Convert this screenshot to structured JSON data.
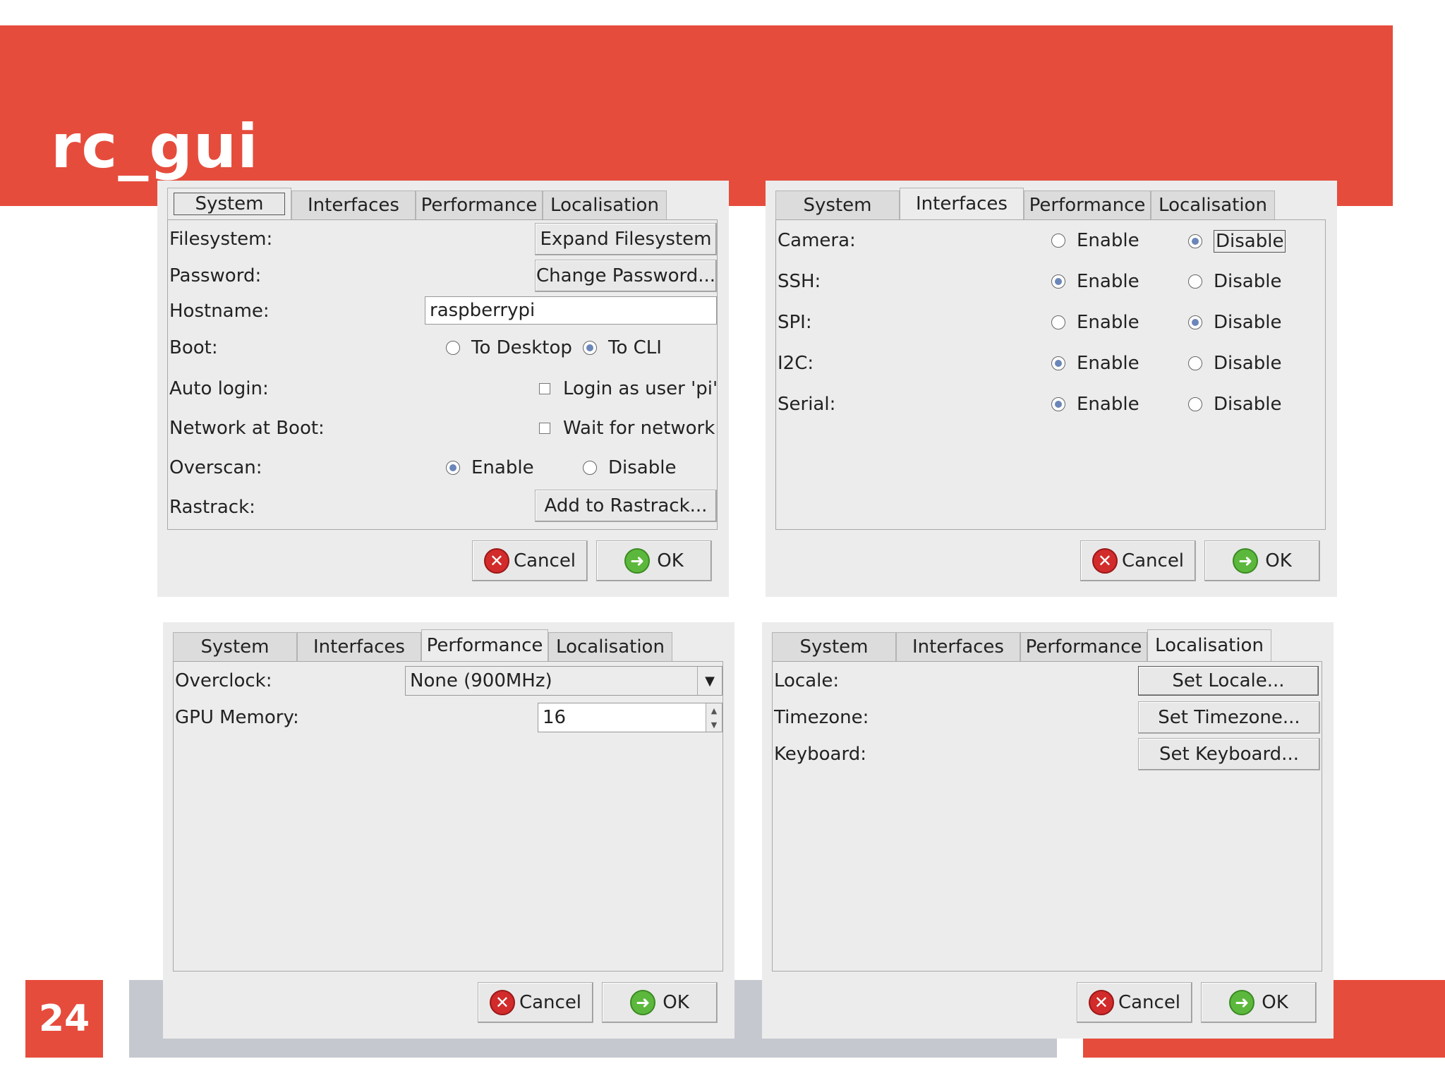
{
  "slide": {
    "title": "rc_gui",
    "page_number": "24"
  },
  "tabs": [
    "System",
    "Interfaces",
    "Performance",
    "Localisation"
  ],
  "buttons": {
    "cancel": "Cancel",
    "ok": "OK"
  },
  "system": {
    "filesystem_label": "Filesystem:",
    "expand_button": "Expand Filesystem",
    "password_label": "Password:",
    "password_button": "Change Password...",
    "hostname_label": "Hostname:",
    "hostname_value": "raspberrypi",
    "boot_label": "Boot:",
    "boot_desktop": "To Desktop",
    "boot_cli": "To CLI",
    "autologin_label": "Auto login:",
    "autologin_check": "Login as user 'pi'",
    "network_label": "Network at Boot:",
    "network_check": "Wait for network",
    "overscan_label": "Overscan:",
    "enable": "Enable",
    "disable": "Disable",
    "rastrack_label": "Rastrack:",
    "rastrack_button": "Add to Rastrack..."
  },
  "interfaces": {
    "enable": "Enable",
    "disable": "Disable",
    "rows": [
      {
        "label": "Camera:",
        "enabled": false
      },
      {
        "label": "SSH:",
        "enabled": true
      },
      {
        "label": "SPI:",
        "enabled": false
      },
      {
        "label": "I2C:",
        "enabled": true
      },
      {
        "label": "Serial:",
        "enabled": true
      }
    ]
  },
  "performance": {
    "overclock_label": "Overclock:",
    "overclock_value": "None (900MHz)",
    "gpu_label": "GPU Memory:",
    "gpu_value": "16"
  },
  "localisation": {
    "locale_label": "Locale:",
    "locale_button": "Set Locale...",
    "timezone_label": "Timezone:",
    "timezone_button": "Set Timezone...",
    "keyboard_label": "Keyboard:",
    "keyboard_button": "Set Keyboard..."
  }
}
